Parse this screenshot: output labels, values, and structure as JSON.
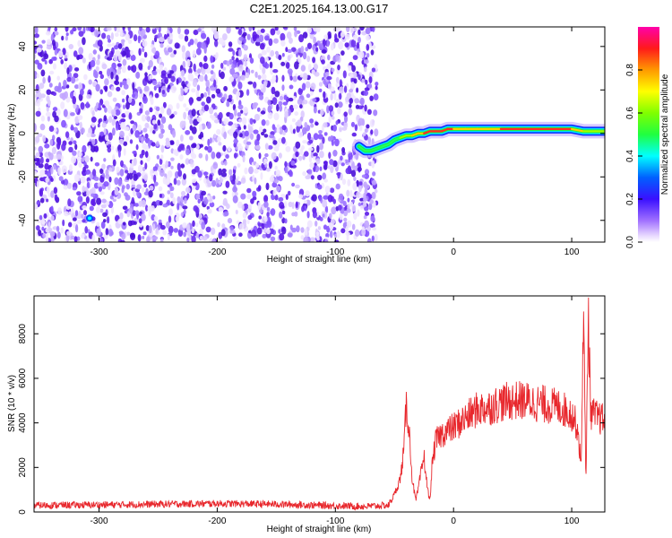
{
  "title": "C2E1.2025.164.13.00.G17",
  "colors": {
    "snr_line": "#e8282d",
    "scatter_purple": "#5a1ee8",
    "trace_core": "#ff2a2a",
    "trace_mid": "#28f028",
    "trace_edge": "#0a28ff"
  },
  "chart_data": [
    {
      "type": "heatmap",
      "xlabel": "Height of straight line (km)",
      "ylabel": "Frequency (Hz)",
      "xlim": [
        -355,
        128
      ],
      "ylim": [
        -50,
        49
      ],
      "xticks": [
        -300,
        -200,
        -100,
        0,
        100
      ],
      "yticks": [
        -40,
        -20,
        0,
        20,
        40
      ],
      "grid": false,
      "noise_region_x": [
        -355,
        -68
      ],
      "signal_trace": {
        "x": [
          -80,
          -75,
          -70,
          -65,
          -60,
          -55,
          -50,
          -45,
          -40,
          -35,
          -30,
          -25,
          -20,
          -15,
          -10,
          -5,
          0,
          10,
          20,
          40,
          60,
          80,
          100,
          110,
          120,
          128
        ],
        "y": [
          -6,
          -8,
          -8,
          -7,
          -6,
          -5,
          -3,
          -2,
          -1,
          -1,
          0,
          0,
          1,
          1,
          1,
          2,
          2,
          2,
          2,
          2,
          2,
          2,
          2,
          1,
          1,
          1
        ],
        "amplitude": [
          0.4,
          0.5,
          0.5,
          0.45,
          0.4,
          0.45,
          0.5,
          0.55,
          0.6,
          0.75,
          0.8,
          0.85,
          0.9,
          0.9,
          0.95,
          0.95,
          0.9,
          0.7,
          0.75,
          0.9,
          0.95,
          0.95,
          0.9,
          0.7,
          0.65,
          0.6
        ]
      },
      "bright_spot": {
        "x": -308,
        "y": -39
      }
    },
    {
      "type": "colorbar",
      "label": "Normalized spectral amplitude",
      "range": [
        0,
        1
      ],
      "ticks": [
        0.0,
        0.2,
        0.4,
        0.6,
        0.8
      ],
      "tick_labels": [
        "0.0",
        "0.2",
        "0.4",
        "0.6",
        "0.8"
      ]
    },
    {
      "type": "line",
      "xlabel": "Height of straight line (km)",
      "ylabel": "SNR (10 * v/v)",
      "xlim": [
        -355,
        128
      ],
      "ylim": [
        0,
        9700
      ],
      "xticks": [
        -300,
        -200,
        -100,
        0,
        100
      ],
      "yticks": [
        0,
        2000,
        4000,
        6000,
        8000
      ],
      "grid": false,
      "series": [
        {
          "x": [
            -355,
            -300,
            -250,
            -200,
            -150,
            -100,
            -75,
            -55,
            -50,
            -45,
            -42,
            -40,
            -38,
            -35,
            -32,
            -30,
            -25,
            -22,
            -20,
            -18,
            -15,
            -10,
            0,
            10,
            20,
            30,
            40,
            50,
            60,
            70,
            80,
            90,
            100,
            105,
            108,
            110,
            112,
            114,
            116,
            120,
            128
          ],
          "y": [
            300,
            320,
            350,
            380,
            350,
            280,
            250,
            300,
            800,
            1500,
            2800,
            4800,
            4000,
            1500,
            500,
            1000,
            2500,
            1000,
            500,
            2200,
            3200,
            3500,
            3800,
            4200,
            4600,
            4700,
            4900,
            5000,
            5000,
            4900,
            4800,
            4700,
            4400,
            3800,
            2000,
            9600,
            1000,
            9200,
            4500,
            4300,
            4100
          ]
        }
      ]
    }
  ]
}
